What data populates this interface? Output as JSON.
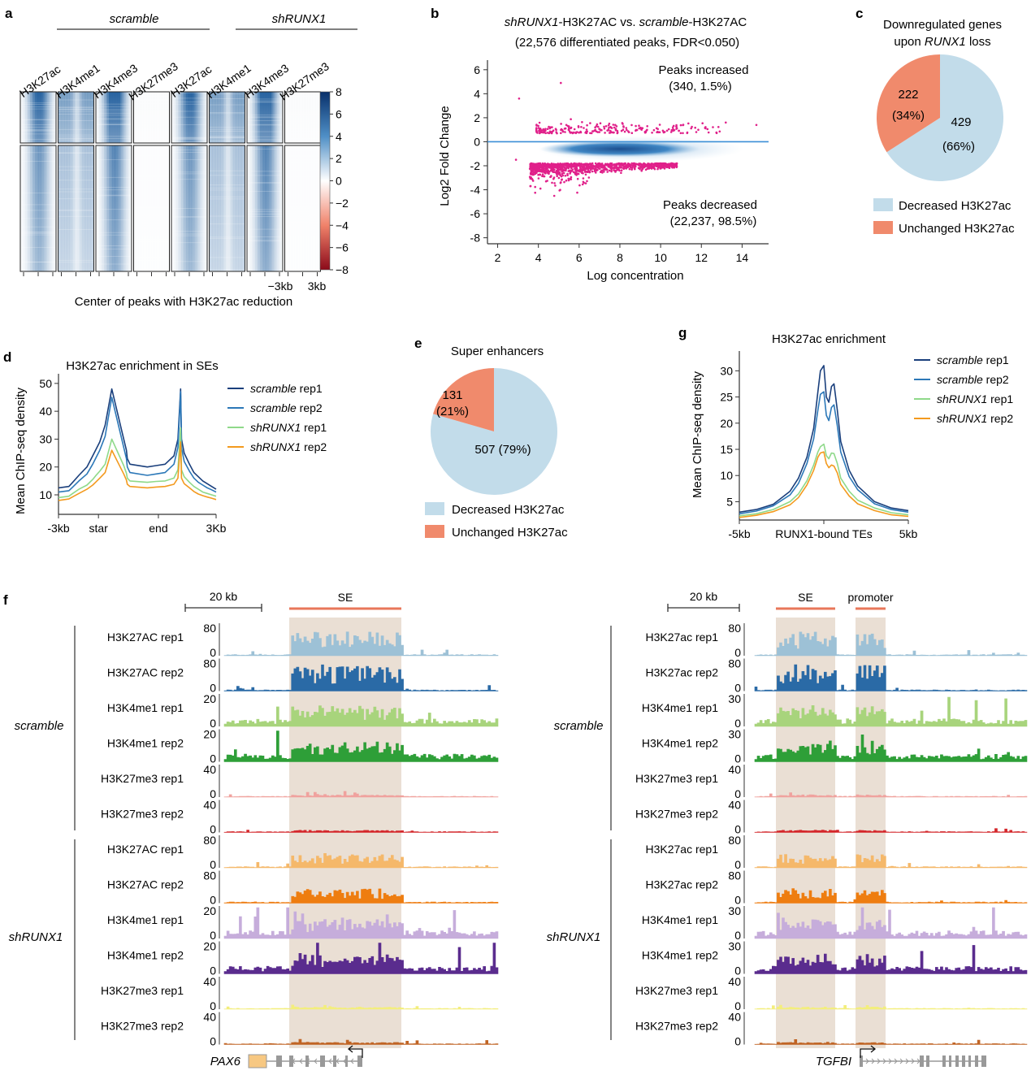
{
  "colors": {
    "blue_dark": "#1a3f7c",
    "blue": "#2c78b8",
    "light_green": "#8fd98a",
    "orange": "#f39a1e",
    "pie_blue": "#c2dcea",
    "pie_salmon": "#f08a6c",
    "magenta": "#e0208a",
    "se_shade": "#eadfd4",
    "se_bar": "#e8775a",
    "h3k27ac_scr1": "#9dc1d6",
    "h3k27ac_scr2": "#2a6aa6",
    "h3k4me1_scr1": "#a8d47c",
    "h3k4me1_scr2": "#2e9f38",
    "h3k27me3_scr1": "#f0a29e",
    "h3k27me3_scr2": "#d4262a",
    "h3k27ac_sh1": "#f5b86a",
    "h3k27ac_sh2": "#ee7d10",
    "h3k4me1_sh1": "#c6addb",
    "h3k4me1_sh2": "#5a2c8e",
    "h3k27me3_sh1": "#f3ee7c",
    "h3k27me3_sh2": "#c06424"
  },
  "panel_letters": {
    "a": "a",
    "b": "b",
    "c": "c",
    "d": "d",
    "e": "e",
    "f": "f",
    "g": "g"
  },
  "panel_a": {
    "group_scramble": "scramble",
    "group_shrunx1": "shRUNX1",
    "columns": [
      "H3K27ac",
      "H3K4me1",
      "H3K4me3",
      "H3K27me3",
      "H3K27ac",
      "H3K4me1",
      "H3K4me3",
      "H3K27me3"
    ],
    "colorbar_ticks": [
      "8",
      "6",
      "4",
      "2",
      "0",
      "−2",
      "−4",
      "−6",
      "−8"
    ],
    "x_left": "−3kb",
    "x_right": "3kb",
    "xlabel": "Center of peaks with H3K27ac reduction"
  },
  "panel_b": {
    "title_italic_1": "shRUNX1",
    "title_mid": "-H3K27AC vs. ",
    "title_italic_2": "scramble",
    "title_end": "-H3K27AC",
    "subtitle": "(22,576 differentiated peaks, FDR<0.050)",
    "ylabel": "Log2 Fold Change",
    "xlabel": "Log concentration",
    "ann_increased_1": "Peaks increased",
    "ann_increased_2": "(340, 1.5%)",
    "ann_decreased_1": "Peaks decreased",
    "ann_decreased_2": "(22,237, 98.5%)"
  },
  "panel_c": {
    "title_1": "Downregulated genes",
    "title_2_pre": "upon ",
    "title_2_it": "RUNX1",
    "title_2_post": " loss",
    "big_value": "429",
    "big_pct": "(66%)",
    "small_value": "222",
    "small_pct": "(34%)",
    "legend_1": "Decreased H3K27ac",
    "legend_2": "Unchanged H3K27ac"
  },
  "panel_d": {
    "title": "H3K27ac enrichment in SEs",
    "ylabel": "Mean ChIP-seq density",
    "xticks": [
      "-3kb",
      "star",
      "end",
      "3Kb"
    ],
    "legend": [
      {
        "it": "scramble",
        "rest": " rep1"
      },
      {
        "it": "scramble",
        "rest": " rep2"
      },
      {
        "it": "shRUNX1",
        "rest": " rep1"
      },
      {
        "it": "shRUNX1",
        "rest": " rep2"
      }
    ]
  },
  "panel_e": {
    "title": "Super enhancers",
    "big_label": "507 (79%)",
    "small_value": "131",
    "small_pct": "(21%)",
    "legend_1": "Decreased H3K27ac",
    "legend_2": "Unchanged H3K27ac"
  },
  "panel_g": {
    "title": "H3K27ac enrichment",
    "ylabel": "Mean ChIP-seq density",
    "xticks": [
      "-5kb",
      "RUNX1-bound TEs",
      "5kb"
    ],
    "legend": [
      {
        "it": "scramble",
        "rest": " rep1"
      },
      {
        "it": "scramble",
        "rest": " rep2"
      },
      {
        "it": "shRUNX1",
        "rest": " rep1"
      },
      {
        "it": "shRUNX1",
        "rest": " rep2"
      }
    ]
  },
  "panel_f": {
    "left": {
      "scalebar": "20 kb",
      "region1": "SE",
      "gene": "PAX6",
      "group_scramble": "scramble",
      "group_shrunx1": "shRUNX1",
      "tracks": [
        {
          "label": "H3K27AC rep1",
          "ymax": "80",
          "ymin": "0"
        },
        {
          "label": "H3K27AC rep2",
          "ymax": "80",
          "ymin": "0"
        },
        {
          "label": "H3K4me1 rep1",
          "ymax": "20",
          "ymin": "0"
        },
        {
          "label": "H3K4me1 rep2",
          "ymax": "20",
          "ymin": "0"
        },
        {
          "label": "H3K27me3 rep1",
          "ymax": "40",
          "ymin": "0"
        },
        {
          "label": "H3K27me3 rep2",
          "ymax": "40",
          "ymin": "0"
        },
        {
          "label": "H3K27AC rep1",
          "ymax": "80",
          "ymin": "0"
        },
        {
          "label": "H3K27AC rep2",
          "ymax": "80",
          "ymin": "0"
        },
        {
          "label": "H3K4me1 rep1",
          "ymax": "20",
          "ymin": "0"
        },
        {
          "label": "H3K4me1 rep2",
          "ymax": "20",
          "ymin": "0"
        },
        {
          "label": "H3K27me3 rep1",
          "ymax": "40",
          "ymin": "0"
        },
        {
          "label": "H3K27me3 rep2",
          "ymax": "40",
          "ymin": "0"
        }
      ]
    },
    "right": {
      "scalebar": "20 kb",
      "region1": "SE",
      "region2": "promoter",
      "gene": "TGFBI",
      "group_scramble": "scramble",
      "group_shrunx1": "shRUNX1",
      "tracks": [
        {
          "label": "H3K27ac rep1",
          "ymax": "80",
          "ymin": "0"
        },
        {
          "label": "H3K27ac rep2",
          "ymax": "80",
          "ymin": "0"
        },
        {
          "label": "H3K4me1 rep1",
          "ymax": "30",
          "ymin": "0"
        },
        {
          "label": "H3K4me1 rep2",
          "ymax": "30",
          "ymin": "0"
        },
        {
          "label": "H3K27me3 rep1",
          "ymax": "40",
          "ymin": "0"
        },
        {
          "label": "H3K27me3 rep2",
          "ymax": "40",
          "ymin": "0"
        },
        {
          "label": "H3K27ac rep1",
          "ymax": "80",
          "ymin": "0"
        },
        {
          "label": "H3K27ac rep2",
          "ymax": "80",
          "ymin": "0"
        },
        {
          "label": "H3K4me1 rep1",
          "ymax": "30",
          "ymin": "0"
        },
        {
          "label": "H3K4me1 rep2",
          "ymax": "30",
          "ymin": "0"
        },
        {
          "label": "H3K27me3 rep1",
          "ymax": "40",
          "ymin": "0"
        },
        {
          "label": "H3K27me3 rep2",
          "ymax": "40",
          "ymin": "0"
        }
      ]
    }
  },
  "chart_data": [
    {
      "id": "b",
      "type": "scatter",
      "x_ticks": [
        2,
        4,
        6,
        8,
        10,
        12,
        14
      ],
      "y_ticks": [
        -8,
        -6,
        -4,
        -2,
        0,
        2,
        4,
        6
      ],
      "xlim": [
        1.5,
        15.3
      ],
      "ylim": [
        -8.5,
        6.8
      ],
      "reference_line_y": 0,
      "series": [
        {
          "name": "Peaks increased",
          "count": 340,
          "percent": 1.5
        },
        {
          "name": "Peaks decreased",
          "count": 22237,
          "percent": 98.5
        }
      ]
    },
    {
      "id": "c",
      "type": "pie",
      "labels": [
        "Decreased H3K27ac",
        "Unchanged H3K27ac"
      ],
      "values": [
        429,
        222
      ],
      "percents": [
        66,
        34
      ]
    },
    {
      "id": "d",
      "type": "line",
      "y_ticks": [
        10,
        20,
        30,
        40,
        50
      ],
      "ylim": [
        3,
        52
      ],
      "x_positions": [
        0,
        2.35,
        3.2,
        4.6,
        6.4,
        7.7,
        8.35,
        9.3,
        10.5,
        12,
        14.7,
        15.3,
        15.5,
        16.1,
        20,
        22,
        24,
        26,
        26.9,
        27.5,
        27.7,
        28.3,
        29.5,
        30.5,
        31.5,
        32.5,
        33.5,
        34.5,
        35.5
      ],
      "series": [
        {
          "name": "scramble rep1",
          "values": [
            12.5,
            13,
            14.5,
            17,
            20,
            24,
            26,
            29,
            35,
            48,
            30,
            26,
            23,
            21,
            20,
            20.5,
            21,
            24,
            30,
            48,
            30,
            25,
            21,
            18,
            16.5,
            15,
            14,
            13,
            12
          ]
        },
        {
          "name": "scramble rep2",
          "values": [
            11,
            11.5,
            12.8,
            15,
            17.5,
            21,
            23,
            26,
            31,
            45,
            27,
            23,
            20,
            18,
            17,
            17.5,
            18,
            21,
            27,
            47,
            27,
            22,
            18.5,
            16,
            14.5,
            13.5,
            12.5,
            11.8,
            11
          ]
        },
        {
          "name": "shRUNX1 rep1",
          "values": [
            9,
            9.5,
            10.5,
            12,
            13.5,
            15.5,
            16.8,
            18.5,
            21,
            30,
            20.5,
            17.8,
            16,
            15,
            14.5,
            14.8,
            15,
            16,
            19,
            34,
            19,
            16.5,
            14.5,
            13,
            12,
            11,
            10.5,
            10,
            9.5
          ]
        },
        {
          "name": "shRUNX1 rep2",
          "values": [
            8,
            8.5,
            9.3,
            10.5,
            12,
            13.5,
            14.5,
            16,
            18,
            26,
            17.5,
            15.3,
            13.8,
            13,
            12.5,
            12.8,
            13,
            13.8,
            16,
            29,
            16,
            14,
            12.5,
            11.2,
            10.3,
            9.7,
            9.2,
            8.8,
            8.3
          ]
        }
      ]
    },
    {
      "id": "e",
      "type": "pie",
      "labels": [
        "Decreased H3K27ac",
        "Unchanged H3K27ac"
      ],
      "values": [
        507,
        131
      ],
      "percents": [
        79,
        21
      ]
    },
    {
      "id": "g",
      "type": "line",
      "y_ticks": [
        5,
        10,
        15,
        20,
        25,
        30
      ],
      "ylim": [
        1.5,
        33
      ],
      "x_positions": [
        -5,
        -4,
        -3,
        -2,
        -1.5,
        -1,
        -0.6,
        -0.35,
        -0.2,
        0,
        0.15,
        0.3,
        0.45,
        0.6,
        0.8,
        1.0,
        1.5,
        2,
        3,
        4,
        5
      ],
      "series": [
        {
          "name": "scramble rep1",
          "values": [
            3,
            3.5,
            4.5,
            7,
            9.5,
            13.5,
            19,
            26,
            30,
            31,
            25,
            24,
            27,
            27.5,
            22.5,
            16.5,
            11,
            8,
            5,
            3.8,
            3.3
          ]
        },
        {
          "name": "scramble rep2",
          "values": [
            2.7,
            3.2,
            4.2,
            6.3,
            8.5,
            12.3,
            17,
            22.5,
            25.5,
            26,
            21.5,
            20.5,
            23,
            23.5,
            19.5,
            14.5,
            9.8,
            7.3,
            4.6,
            3.5,
            3
          ]
        },
        {
          "name": "shRUNX1 rep1",
          "values": [
            2.3,
            2.7,
            3.5,
            5,
            6.5,
            9,
            12,
            14.5,
            15.5,
            16,
            13.8,
            13.2,
            14.3,
            14.2,
            12.3,
            9.5,
            7,
            5.3,
            3.8,
            2.9,
            2.5
          ]
        },
        {
          "name": "shRUNX1 rep2",
          "values": [
            2,
            2.4,
            3.1,
            4.4,
            5.8,
            8.2,
            11,
            13.5,
            14.3,
            14.5,
            12.3,
            11.5,
            12,
            11.8,
            10.5,
            8.3,
            6.1,
            4.6,
            3.3,
            2.5,
            2.2
          ]
        }
      ]
    }
  ]
}
